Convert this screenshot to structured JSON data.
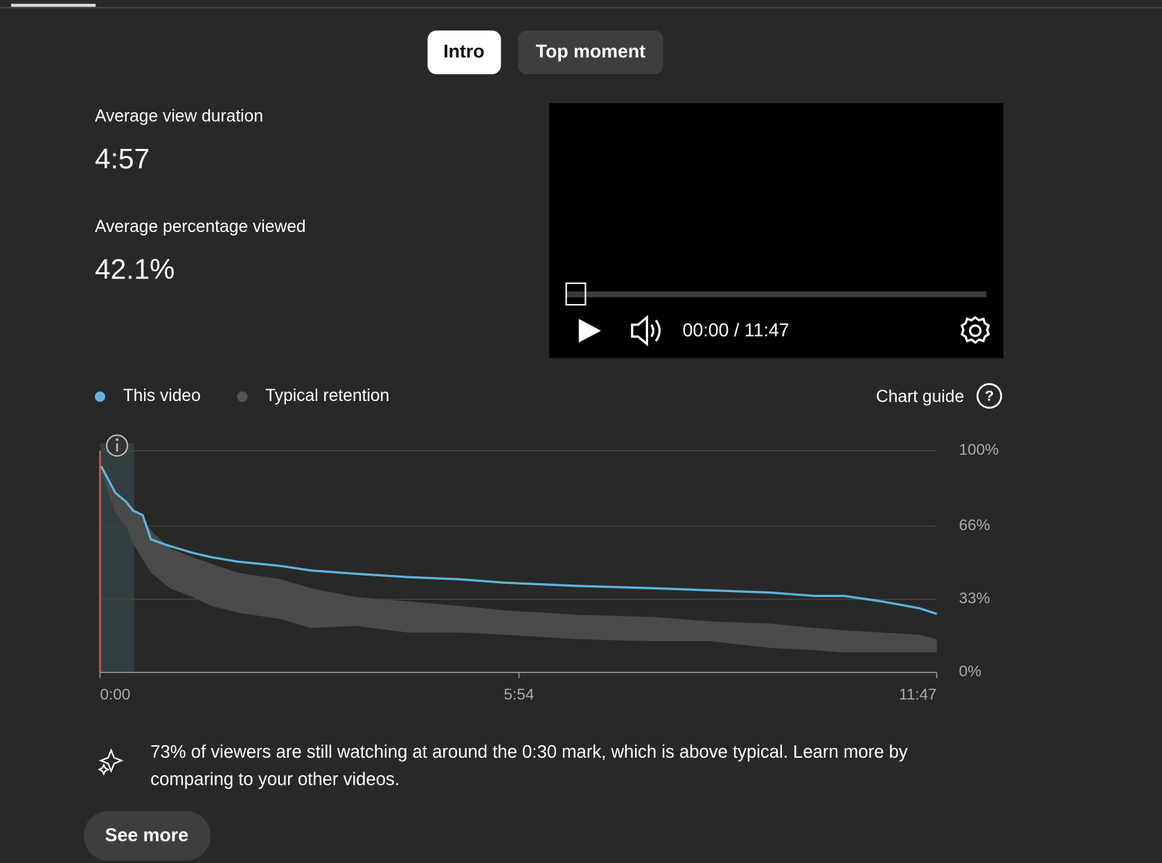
{
  "tabs": [
    "Intro",
    "Top moment"
  ],
  "stats": [
    {
      "label": "Average view duration",
      "value": "4:57"
    },
    {
      "label": "Average percentage viewed",
      "value": "42.1%"
    }
  ],
  "player": {
    "time": "00:00 / 11:47"
  },
  "chart_guide": "Chart guide",
  "chart_data": {
    "type": "line",
    "x": [
      1,
      13,
      22,
      28,
      36,
      43,
      59,
      78,
      94,
      116,
      153,
      178,
      216,
      260,
      304,
      341,
      404,
      467,
      517,
      567,
      604,
      629,
      661,
      692,
      707
    ],
    "series": [
      {
        "name": "This video",
        "color": "#5fb4dc",
        "values": [
          93,
          81,
          77,
          73,
          71,
          60,
          57,
          54,
          52,
          50,
          48,
          46,
          44.5,
          43,
          42,
          40.5,
          39,
          38,
          37,
          36,
          34.5,
          34.5,
          32,
          29,
          26.4
        ]
      },
      {
        "name": "Typical retention",
        "color": "#4a4a4a",
        "values": [
          93,
          82,
          77,
          74,
          70,
          64,
          56,
          52,
          49,
          45,
          42,
          38,
          34,
          32,
          30,
          28,
          26,
          25,
          23,
          22,
          20,
          19,
          18,
          17,
          15
        ],
        "lows": [
          90,
          72,
          66,
          58,
          51,
          45,
          38,
          34,
          30,
          27,
          24,
          20,
          21,
          18,
          18,
          17,
          15,
          14,
          14,
          11,
          10,
          9,
          9,
          9,
          9
        ]
      }
    ],
    "xlim": [
      0,
      707
    ],
    "xticks": [
      {
        "value": 0,
        "label": "0:00"
      },
      {
        "value": 354,
        "label": "5:54"
      },
      {
        "value": 707,
        "label": "11:47"
      }
    ],
    "ylim": [
      0,
      100
    ],
    "yticks": [
      {
        "value": 0,
        "label": "0%"
      },
      {
        "value": 33,
        "label": "33%"
      },
      {
        "value": 66,
        "label": "66%"
      },
      {
        "value": 100,
        "label": "100%"
      }
    ],
    "grid": true
  },
  "insight": "73% of viewers are still watching at around the 0:30 mark, which is above typical. Learn more by comparing to your other videos.",
  "see_more": "See more"
}
